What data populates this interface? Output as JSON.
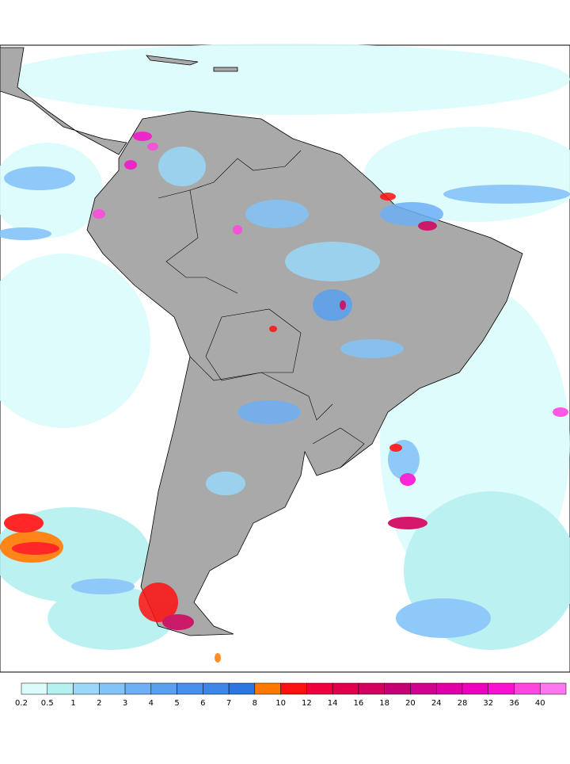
{
  "colorbar": {
    "levels": [
      0.2,
      0.5,
      1,
      2,
      3,
      4,
      5,
      6,
      7,
      8,
      10,
      12,
      14,
      16,
      18,
      20,
      24,
      28,
      32,
      36,
      40
    ],
    "colors": [
      "#dcfcfc",
      "#b4f0f0",
      "#9ad8fa",
      "#82c4fa",
      "#6eb0f5",
      "#5aa0f0",
      "#4690ec",
      "#3c86e8",
      "#2c76e0",
      "#ff7800",
      "#ff1010",
      "#f0003c",
      "#e2004c",
      "#d2005e",
      "#c40074",
      "#d20090",
      "#e000a8",
      "#ee00bc",
      "#fa10d0",
      "#ff46e0",
      "#ff78f0"
    ]
  }
}
